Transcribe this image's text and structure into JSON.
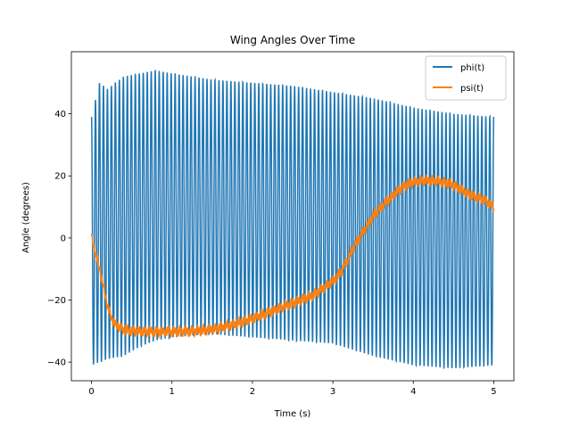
{
  "chart_data": {
    "type": "line",
    "title": "Wing Angles Over Time",
    "xlabel": "Time (s)",
    "ylabel": "Angle (degrees)",
    "xlim": [
      -0.25,
      5.25
    ],
    "ylim": [
      -46,
      60
    ],
    "xticks": [
      0,
      1,
      2,
      3,
      4,
      5
    ],
    "xtick_labels": [
      "0",
      "1",
      "2",
      "3",
      "4",
      "5"
    ],
    "yticks": [
      -40,
      -20,
      0,
      20,
      40
    ],
    "ytick_labels": [
      "−40",
      "−20",
      "0",
      "20",
      "40"
    ],
    "grid": false,
    "legend_position": "top-right",
    "series": [
      {
        "name": "phi(t)",
        "color": "#1f77b4",
        "description": "rapid flapping oscillation, ~20 cycles/s, about mean 5-7 deg",
        "envelope": {
          "t": [
            0.0,
            0.1,
            0.2,
            0.4,
            0.6,
            0.8,
            1.0,
            1.5,
            2.0,
            2.5,
            3.0,
            3.5,
            4.0,
            4.5,
            5.0
          ],
          "max": [
            39,
            50,
            48,
            52,
            53,
            54,
            53,
            51,
            50,
            49,
            47,
            45,
            42,
            40,
            39
          ],
          "min": [
            -41,
            -40,
            -39,
            -38,
            -35,
            -33,
            -32,
            -31,
            -32,
            -33,
            -34,
            -38,
            -41,
            -42,
            -41
          ]
        }
      },
      {
        "name": "psi(t)",
        "color": "#ff7f0e",
        "description": "slow pitch variation with small ripple",
        "points": {
          "t": [
            0.0,
            0.05,
            0.1,
            0.15,
            0.2,
            0.25,
            0.3,
            0.4,
            0.5,
            0.75,
            1.0,
            1.25,
            1.5,
            1.75,
            2.0,
            2.25,
            2.5,
            2.75,
            3.0,
            3.1,
            3.2,
            3.3,
            3.4,
            3.5,
            3.6,
            3.7,
            3.8,
            3.9,
            4.0,
            4.1,
            4.2,
            4.3,
            4.4,
            4.5,
            4.6,
            4.7,
            4.8,
            4.9,
            5.0
          ],
          "y": [
            0,
            -5,
            -10,
            -16,
            -22,
            -26,
            -28,
            -29.5,
            -30,
            -30.2,
            -30.2,
            -30,
            -29.5,
            -28,
            -26,
            -23.5,
            -21,
            -18.5,
            -14,
            -11,
            -6,
            -1,
            3,
            7,
            10,
            12.5,
            15,
            17,
            18,
            18.5,
            18.5,
            18.3,
            17.8,
            17,
            15.5,
            14,
            13,
            12,
            10
          ]
        }
      }
    ]
  }
}
